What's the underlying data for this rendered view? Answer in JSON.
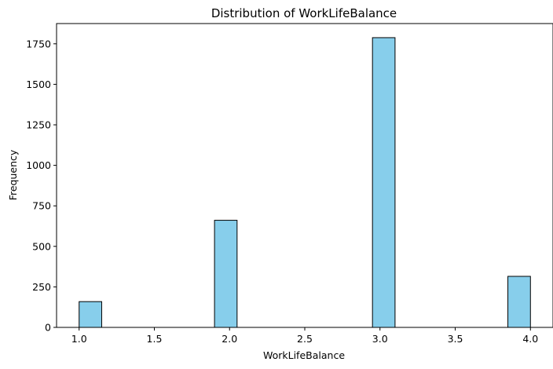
{
  "chart_data": {
    "type": "bar",
    "title": "Distribution of WorkLifeBalance",
    "xlabel": "WorkLifeBalance",
    "ylabel": "Frequency",
    "xlim": [
      0.85,
      4.15
    ],
    "ylim": [
      0,
      1875
    ],
    "bin_width": 0.15,
    "x_ticks": [
      "1.0",
      "1.5",
      "2.0",
      "2.5",
      "3.0",
      "3.5",
      "4.0"
    ],
    "y_ticks": [
      "0",
      "250",
      "500",
      "750",
      "1000",
      "1250",
      "1500",
      "1750"
    ],
    "bins": [
      {
        "x_start": 1.0,
        "x_end": 1.15,
        "value": 159
      },
      {
        "x_start": 1.9,
        "x_end": 2.05,
        "value": 661
      },
      {
        "x_start": 2.95,
        "x_end": 3.1,
        "value": 1788
      },
      {
        "x_start": 3.85,
        "x_end": 4.0,
        "value": 315
      }
    ],
    "grid": false,
    "bar_color": "#87ceeb",
    "edge_color": "#000000"
  }
}
